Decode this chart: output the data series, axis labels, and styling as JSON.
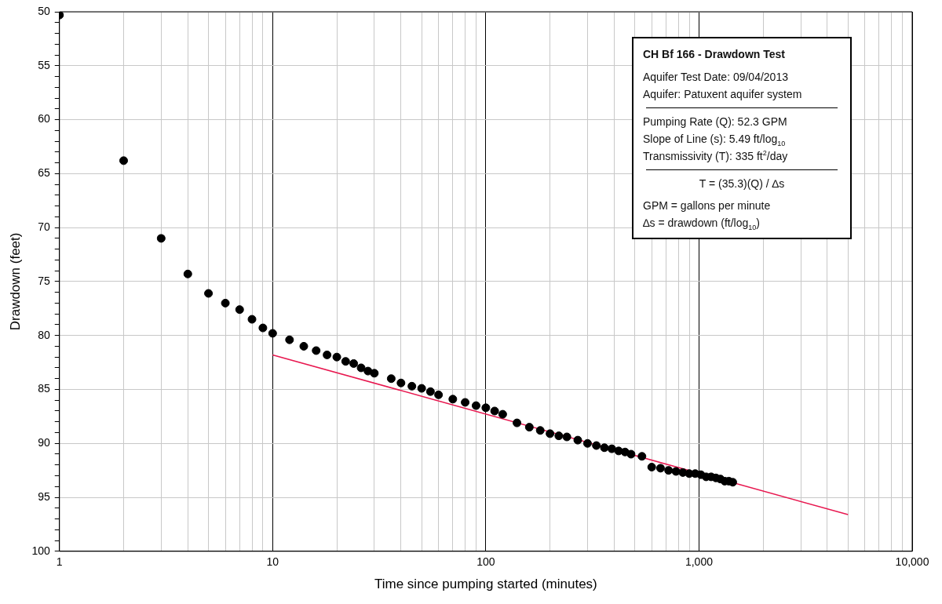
{
  "chart_data": {
    "type": "scatter",
    "title": "CH Bf 166 - Drawdown Test",
    "xlabel": "Time since pumping started (minutes)",
    "ylabel": "Drawdown (feet)",
    "annotations": [
      "Aquifer Test Date: 09/04/2013",
      "Aquifer: Patuxent aquifer system",
      "Pumping Rate (Q): 52.3 GPM",
      "Slope of Line (s): 5.49 ft/log$_{10}$",
      "Transmissivity (T): 335 ft$^{2}$/day",
      "T = (35.3)(Q) / ∆s",
      "GPM = gallons per minute",
      "∆s = drawdown (ft/log$_{10}$)"
    ],
    "log": "x",
    "grid": true,
    "legend": false,
    "xlim": [
      1,
      10000
    ],
    "ylim": [
      100,
      50
    ],
    "xticks": [
      1,
      {
        "value": 2,
        "label": null
      },
      {
        "value": 3,
        "label": null
      },
      {
        "value": 4,
        "label": null
      },
      {
        "value": 5,
        "label": null
      },
      {
        "value": 6,
        "label": null
      },
      {
        "value": 7,
        "label": null
      },
      {
        "value": 8,
        "label": null
      },
      {
        "value": 9,
        "label": null
      },
      10,
      {
        "value": 20,
        "label": null
      },
      {
        "value": 30,
        "label": null
      },
      {
        "value": 40,
        "label": null
      },
      {
        "value": 50,
        "label": null
      },
      {
        "value": 60,
        "label": null
      },
      {
        "value": 70,
        "label": null
      },
      {
        "value": 80,
        "label": null
      },
      {
        "value": 90,
        "label": null
      },
      100,
      {
        "value": 200,
        "label": null
      },
      {
        "value": 300,
        "label": null
      },
      {
        "value": 400,
        "label": null
      },
      {
        "value": 500,
        "label": null
      },
      {
        "value": 600,
        "label": null
      },
      {
        "value": 700,
        "label": null
      },
      {
        "value": 800,
        "label": null
      },
      {
        "value": 900,
        "label": null
      },
      {
        "value": 1000,
        "label": "1,000"
      },
      {
        "value": 2000,
        "label": null
      },
      {
        "value": 3000,
        "label": null
      },
      {
        "value": 4000,
        "label": null
      },
      {
        "value": 5000,
        "label": null
      },
      {
        "value": 6000,
        "label": null
      },
      {
        "value": 7000,
        "label": null
      },
      {
        "value": 8000,
        "label": null
      },
      {
        "value": 9000,
        "label": null
      },
      {
        "value": 10000,
        "label": "10,000"
      }
    ],
    "yticks": [
      50,
      {
        "value": 51,
        "label": null
      },
      {
        "value": 52,
        "label": null
      },
      {
        "value": 53,
        "label": null
      },
      {
        "value": 54,
        "label": null
      },
      55,
      {
        "value": 56,
        "label": null
      },
      {
        "value": 57,
        "label": null
      },
      {
        "value": 58,
        "label": null
      },
      {
        "value": 59,
        "label": null
      },
      60,
      {
        "value": 61,
        "label": null
      },
      {
        "value": 62,
        "label": null
      },
      {
        "value": 63,
        "label": null
      },
      {
        "value": 64,
        "label": null
      },
      65,
      {
        "value": 66,
        "label": null
      },
      {
        "value": 67,
        "label": null
      },
      {
        "value": 68,
        "label": null
      },
      {
        "value": 69,
        "label": null
      },
      70,
      {
        "value": 71,
        "label": null
      },
      {
        "value": 72,
        "label": null
      },
      {
        "value": 73,
        "label": null
      },
      {
        "value": 74,
        "label": null
      },
      75,
      {
        "value": 76,
        "label": null
      },
      {
        "value": 77,
        "label": null
      },
      {
        "value": 78,
        "label": null
      },
      {
        "value": 79,
        "label": null
      },
      80,
      {
        "value": 81,
        "label": null
      },
      {
        "value": 82,
        "label": null
      },
      {
        "value": 83,
        "label": null
      },
      {
        "value": 84,
        "label": null
      },
      85,
      {
        "value": 86,
        "label": null
      },
      {
        "value": 87,
        "label": null
      },
      {
        "value": 88,
        "label": null
      },
      {
        "value": 89,
        "label": null
      },
      90,
      {
        "value": 91,
        "label": null
      },
      {
        "value": 92,
        "label": null
      },
      {
        "value": 93,
        "label": null
      },
      {
        "value": 94,
        "label": null
      },
      95,
      {
        "value": 96,
        "label": null
      },
      {
        "value": 97,
        "label": null
      },
      {
        "value": 98,
        "label": null
      },
      {
        "value": 99,
        "label": null
      },
      100
    ],
    "series": [
      {
        "marker": "circle",
        "color": "#000000",
        "x": [
          1,
          2,
          3,
          4,
          5,
          6,
          7,
          8,
          9,
          10,
          12,
          14,
          16,
          18,
          20,
          22,
          24,
          26,
          28,
          30,
          36,
          40,
          45,
          50,
          55,
          60,
          70,
          80,
          90,
          100,
          110,
          120,
          140,
          160,
          180,
          200,
          220,
          240,
          270,
          300,
          330,
          360,
          390,
          420,
          450,
          480,
          540,
          600,
          660,
          720,
          780,
          840,
          900,
          960,
          1020,
          1080,
          1140,
          1200,
          1260,
          1320,
          1380,
          1440
        ],
        "values": [
          50.3,
          63.8,
          71.0,
          74.3,
          76.1,
          77.0,
          77.6,
          78.5,
          79.3,
          79.8,
          80.4,
          81.0,
          81.4,
          81.8,
          82.0,
          82.4,
          82.6,
          83.0,
          83.3,
          83.5,
          84.0,
          84.4,
          84.7,
          84.9,
          85.2,
          85.5,
          85.9,
          86.2,
          86.5,
          86.7,
          87.0,
          87.3,
          88.1,
          88.5,
          88.8,
          89.1,
          89.3,
          89.4,
          89.7,
          90.0,
          90.2,
          90.4,
          90.5,
          90.7,
          90.8,
          91.0,
          91.2,
          92.2,
          92.3,
          92.5,
          92.6,
          92.7,
          92.8,
          92.8,
          92.9,
          93.1,
          93.1,
          93.2,
          93.3,
          93.5,
          93.5,
          93.6
        ]
      },
      {
        "type": "line",
        "color": "#e8174f",
        "x": [
          10,
          5000
        ],
        "values": [
          81.8,
          96.6
        ]
      }
    ]
  }
}
